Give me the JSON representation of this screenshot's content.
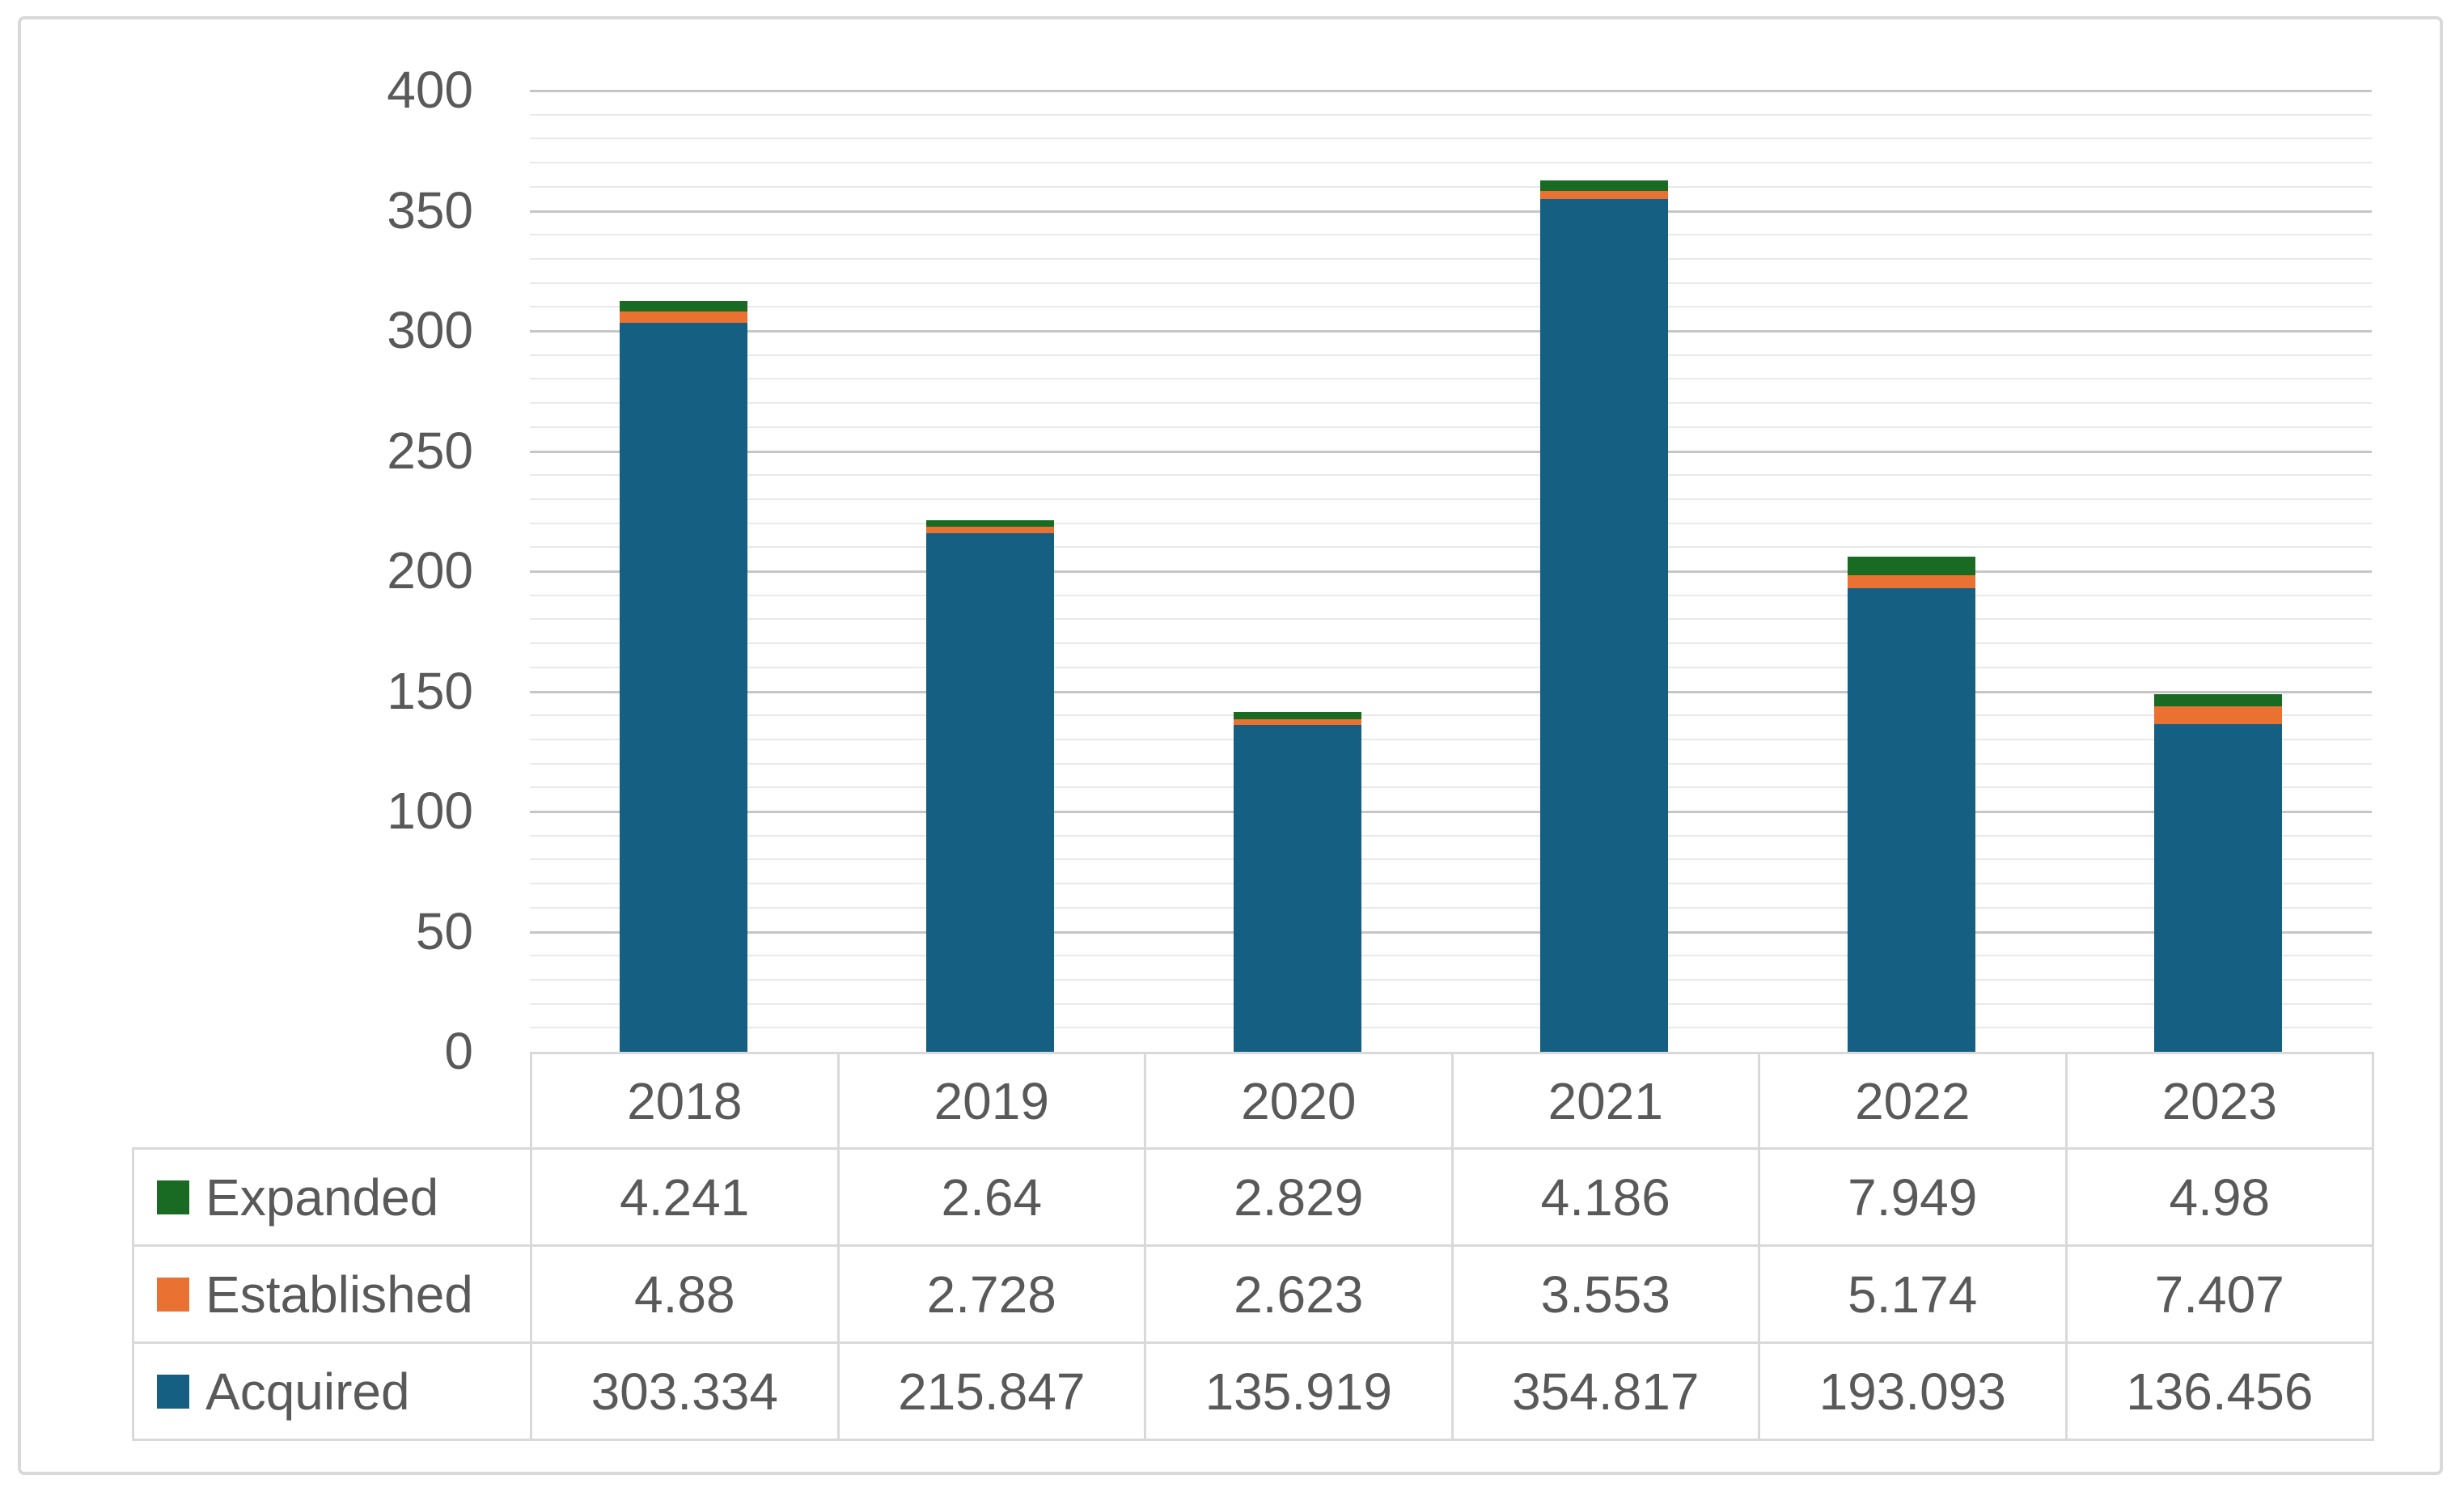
{
  "chart_data": {
    "type": "bar",
    "stacked": true,
    "title": "",
    "xlabel": "",
    "ylabel": "",
    "categories": [
      "2018",
      "2019",
      "2020",
      "2021",
      "2022",
      "2023"
    ],
    "series": [
      {
        "name": "Expanded",
        "color": "#196B24",
        "values": [
          4.241,
          2.64,
          2.829,
          4.186,
          7.949,
          4.98
        ],
        "labels": [
          "4.241",
          "2.64",
          "2.829",
          "4.186",
          "7.949",
          "4.98"
        ]
      },
      {
        "name": "Established",
        "color": "#E97132",
        "values": [
          4.88,
          2.728,
          2.623,
          3.553,
          5.174,
          7.407
        ],
        "labels": [
          "4.88",
          "2.728",
          "2.623",
          "3.553",
          "5.174",
          "7.407"
        ]
      },
      {
        "name": "Acquired",
        "color": "#156082",
        "values": [
          303.334,
          215.847,
          135.919,
          354.817,
          193.093,
          136.456
        ],
        "labels": [
          "303.334",
          "215.847",
          "135.919",
          "354.817",
          "193.093",
          "136.456"
        ]
      }
    ],
    "stack_order_bottom_to_top": [
      "Acquired",
      "Established",
      "Expanded"
    ],
    "ylim": [
      0,
      400
    ],
    "yticks": [
      0,
      50,
      100,
      150,
      200,
      250,
      300,
      350,
      400
    ],
    "ytick_labels": [
      "0",
      "50",
      "100",
      "150",
      "200",
      "250",
      "300",
      "350",
      "400"
    ],
    "minor_tick_step": 10,
    "grid": true,
    "legend_position": "data-table-left"
  },
  "colors": {
    "background": "#FFFFFF",
    "text": "#595959",
    "major_grid": "#C6C6C6",
    "minor_grid": "#E9E9E9",
    "table_border": "#D9D9D9",
    "frame_border": "#D9D9D9",
    "series_expanded": "#196B24",
    "series_established": "#E97132",
    "series_acquired": "#156082"
  }
}
